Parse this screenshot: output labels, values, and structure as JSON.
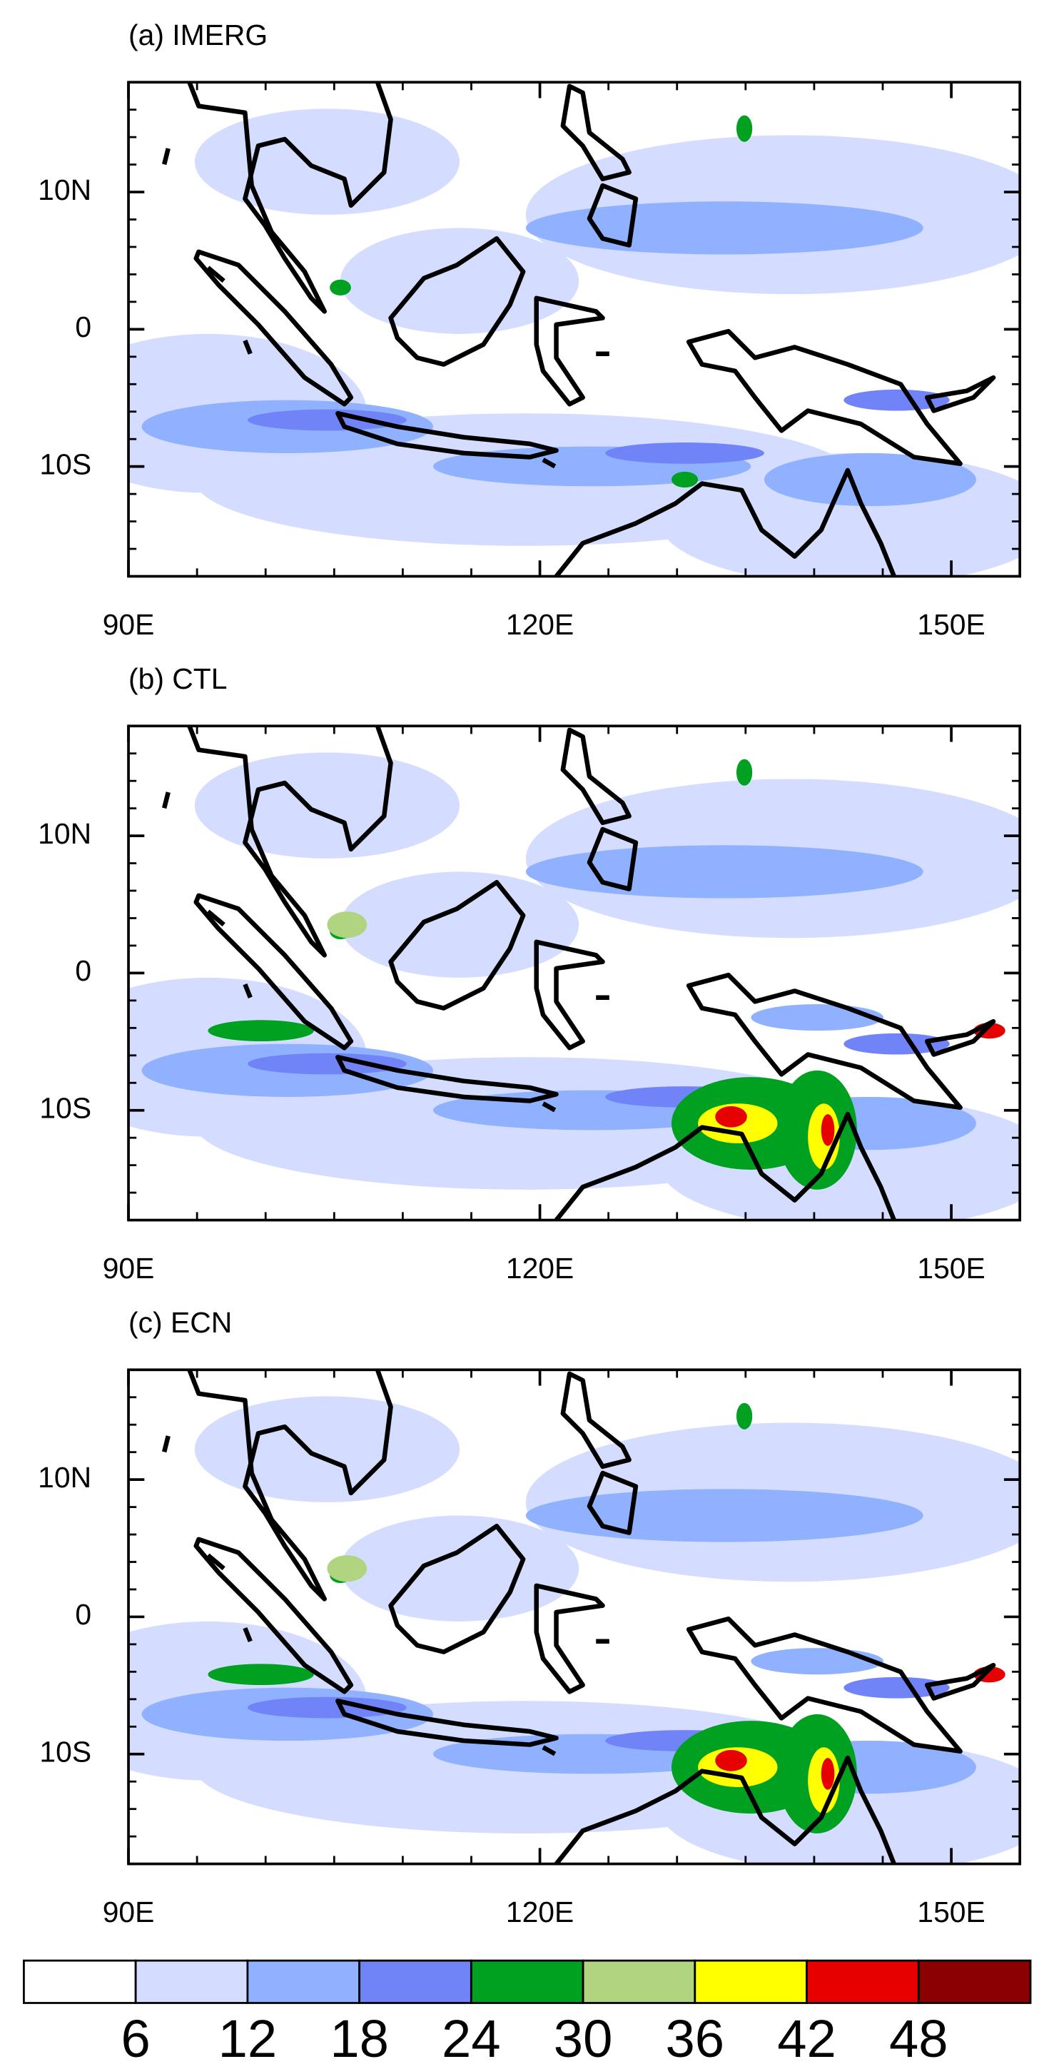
{
  "panels": [
    {
      "title": "(a) IMERG"
    },
    {
      "title": "(b) CTL"
    },
    {
      "title": "(c) ECN"
    }
  ],
  "xlim": [
    90,
    155
  ],
  "ylim": [
    -18,
    18
  ],
  "xticks": [
    {
      "value": 90,
      "label": "90E"
    },
    {
      "value": 120,
      "label": "120E"
    },
    {
      "value": 150,
      "label": "150E"
    }
  ],
  "yticks": [
    {
      "value": 10,
      "label": "10N"
    },
    0,
    {
      "value": -10,
      "label": "10S"
    }
  ],
  "colorbar": {
    "levels": [
      6,
      12,
      18,
      24,
      30,
      36,
      42,
      48
    ],
    "colors": [
      "#ffffff",
      "#d4dcff",
      "#8fb1ff",
      "#7083f7",
      "#00a020",
      "#b1d480",
      "#ffff00",
      "#e60000",
      "#8b0000"
    ]
  }
}
